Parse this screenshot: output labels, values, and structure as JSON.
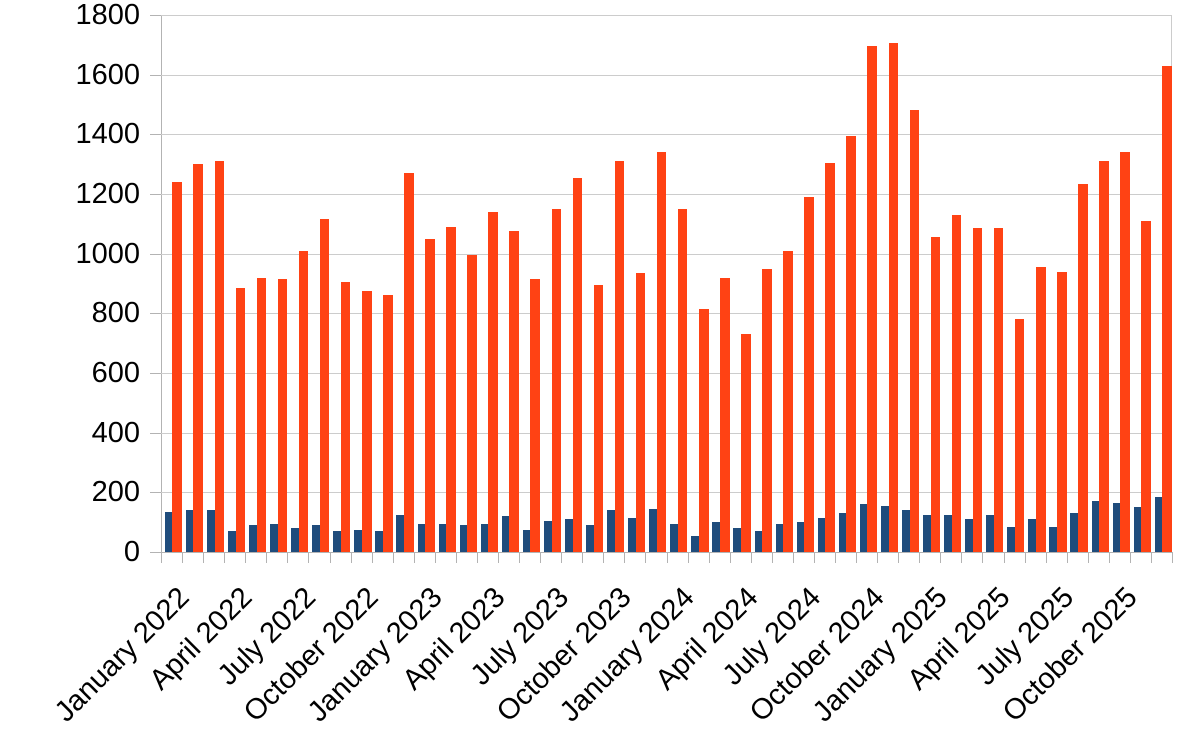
{
  "chart_data": {
    "type": "bar",
    "title": "",
    "xlabel": "",
    "ylabel": "",
    "ylim": [
      0,
      1800
    ],
    "y_ticks": [
      0,
      200,
      400,
      600,
      800,
      1000,
      1200,
      1400,
      1600,
      1800
    ],
    "grid": "horizontal",
    "legend": "none",
    "x_label_rotation_deg": -45,
    "categories": [
      "January 2022",
      "February 2022",
      "March 2022",
      "April 2022",
      "May 2022",
      "June 2022",
      "July 2022",
      "August 2022",
      "September 2022",
      "October 2022",
      "November 2022",
      "December 2022",
      "January 2023",
      "February 2023",
      "March 2023",
      "April 2023",
      "May 2023",
      "June 2023",
      "July 2023",
      "August 2023",
      "September 2023",
      "October 2023",
      "November 2023",
      "December 2023",
      "January 2024",
      "February 2024",
      "March 2024",
      "April 2024",
      "May 2024",
      "June 2024",
      "July 2024",
      "August 2024",
      "September 2024",
      "October 2024",
      "November 2024",
      "December 2024",
      "January 2025",
      "February 2025",
      "March 2025",
      "April 2025",
      "May 2025",
      "June 2025",
      "July 2025",
      "August 2025",
      "September 2025",
      "October 2025",
      "November 2025",
      "December 2025"
    ],
    "visible_x_labels": [
      "January 2022",
      "April 2022",
      "July 2022",
      "October 2022",
      "January 2023",
      "April 2023",
      "July 2023",
      "October 2023",
      "January 2024",
      "April 2024",
      "July 2024",
      "October 2024",
      "January 2025",
      "April 2025",
      "July 2025",
      "October 2025"
    ],
    "x_label_every_n_months": 3,
    "series": [
      {
        "id": "blue-series",
        "color": "#1F4C7C",
        "values": [
          135,
          140,
          140,
          70,
          90,
          95,
          80,
          90,
          70,
          75,
          70,
          125,
          95,
          95,
          90,
          95,
          120,
          75,
          105,
          110,
          90,
          140,
          115,
          145,
          95,
          55,
          100,
          80,
          70,
          95,
          100,
          115,
          130,
          160,
          155,
          140,
          125,
          125,
          110,
          125,
          85,
          110,
          85,
          130,
          170,
          165,
          150,
          185
        ]
      },
      {
        "id": "orange-series",
        "color": "#FF4214",
        "values": [
          1240,
          1300,
          1310,
          885,
          920,
          915,
          1010,
          1115,
          905,
          875,
          860,
          1270,
          1050,
          1090,
          995,
          1140,
          1075,
          915,
          1150,
          1255,
          895,
          1310,
          935,
          1340,
          1150,
          815,
          920,
          730,
          950,
          1010,
          1190,
          1305,
          1395,
          1695,
          1705,
          1480,
          1055,
          1130,
          1085,
          1085,
          780,
          955,
          940,
          1235,
          1310,
          1340,
          1110,
          1630
        ]
      }
    ],
    "colors": {
      "background": "#FFFFFF",
      "gridline": "#CCCCCC",
      "axis": "#B3B3B3",
      "text": "#000000"
    }
  }
}
